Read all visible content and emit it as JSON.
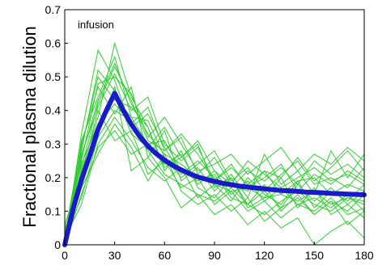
{
  "chart_data": {
    "type": "line",
    "title": "",
    "xlabel": "",
    "ylabel": "Fractional plasma dilution",
    "annotation": "infusion",
    "xlim": [
      0,
      180
    ],
    "ylim": [
      0,
      0.7
    ],
    "xticks": [
      "0",
      "30",
      "60",
      "90",
      "120",
      "150",
      "180"
    ],
    "yticks": [
      "0",
      "0.1",
      "0.2",
      "0.3",
      "0.4",
      "0.5",
      "0.6",
      "0.7"
    ],
    "grid": false,
    "colors": {
      "individual": "#33cc33",
      "model": "#1a1acc"
    },
    "series": [
      {
        "x": [
          0,
          5,
          10,
          15,
          20,
          25,
          30,
          35,
          40,
          45,
          50,
          55,
          60,
          65,
          70,
          75,
          80,
          85,
          90,
          95,
          100,
          105,
          110,
          115,
          120,
          125,
          130,
          135,
          140,
          145,
          150,
          155,
          160,
          165,
          170,
          175,
          180
        ],
        "y": [
          0,
          0.107,
          0.193,
          0.265,
          0.344,
          0.4,
          0.451,
          0.402,
          0.359,
          0.323,
          0.294,
          0.271,
          0.252,
          0.236,
          0.223,
          0.212,
          0.202,
          0.195,
          0.189,
          0.183,
          0.179,
          0.175,
          0.172,
          0.169,
          0.167,
          0.164,
          0.162,
          0.161,
          0.159,
          0.157,
          0.156,
          0.155,
          0.153,
          0.152,
          0.151,
          0.15,
          0.149
        ]
      }
    ],
    "individual_series": [
      {
        "x": [
          0,
          10,
          20,
          30,
          40,
          50,
          60,
          70,
          80,
          90,
          100,
          110,
          120,
          130,
          140,
          150,
          160,
          170,
          180
        ],
        "y": [
          0.02,
          0.26,
          0.43,
          0.54,
          0.42,
          0.33,
          0.27,
          0.24,
          0.2,
          0.18,
          0.16,
          0.17,
          0.14,
          0.15,
          0.13,
          0.16,
          0.12,
          0.14,
          0.13
        ]
      },
      {
        "x": [
          0,
          10,
          20,
          30,
          40,
          50,
          60,
          70,
          80,
          90,
          100,
          110,
          120,
          130,
          140,
          150,
          160,
          170,
          180
        ],
        "y": [
          0.0,
          0.33,
          0.58,
          0.49,
          0.35,
          0.39,
          0.29,
          0.21,
          0.25,
          0.2,
          0.17,
          0.22,
          0.19,
          0.23,
          0.18,
          0.25,
          0.21,
          0.24,
          0.2
        ]
      },
      {
        "x": [
          0,
          10,
          20,
          30,
          40,
          50,
          60,
          70,
          80,
          90,
          100,
          110,
          120,
          130,
          140,
          150,
          160,
          170,
          180
        ],
        "y": [
          0.05,
          0.18,
          0.35,
          0.44,
          0.38,
          0.3,
          0.31,
          0.22,
          0.19,
          0.21,
          0.14,
          0.12,
          0.18,
          0.1,
          0.15,
          0.09,
          0.13,
          0.1,
          0.15
        ]
      },
      {
        "x": [
          0,
          10,
          20,
          30,
          40,
          50,
          60,
          70,
          80,
          90,
          100,
          110,
          120,
          130,
          140,
          150,
          160,
          170,
          180
        ],
        "y": [
          0.0,
          0.22,
          0.38,
          0.6,
          0.44,
          0.35,
          0.22,
          0.28,
          0.17,
          0.14,
          0.2,
          0.12,
          0.16,
          0.11,
          0.18,
          0.13,
          0.17,
          0.12,
          0.16
        ]
      },
      {
        "x": [
          0,
          10,
          20,
          30,
          40,
          50,
          60,
          70,
          80,
          90,
          100,
          110,
          120,
          130,
          140,
          150,
          160,
          170,
          180
        ],
        "y": [
          0.03,
          0.3,
          0.47,
          0.39,
          0.47,
          0.26,
          0.34,
          0.19,
          0.23,
          0.16,
          0.21,
          0.14,
          0.27,
          0.18,
          0.22,
          0.15,
          0.28,
          0.2,
          0.27
        ]
      },
      {
        "x": [
          0,
          10,
          20,
          30,
          40,
          50,
          60,
          70,
          80,
          90,
          100,
          110,
          120,
          130,
          140,
          150,
          160,
          170,
          180
        ],
        "y": [
          0.0,
          0.15,
          0.29,
          0.34,
          0.27,
          0.3,
          0.24,
          0.27,
          0.18,
          0.22,
          0.15,
          0.19,
          0.13,
          0.17,
          0.12,
          0.14,
          0.11,
          0.15,
          0.1
        ]
      },
      {
        "x": [
          0,
          10,
          20,
          30,
          40,
          50,
          60,
          70,
          80,
          90,
          100,
          110,
          120,
          130,
          140,
          150,
          160,
          170,
          180
        ],
        "y": [
          0.01,
          0.27,
          0.41,
          0.51,
          0.4,
          0.44,
          0.3,
          0.25,
          0.29,
          0.19,
          0.24,
          0.17,
          0.2,
          0.24,
          0.16,
          0.21,
          0.18,
          0.22,
          0.19
        ]
      },
      {
        "x": [
          0,
          10,
          20,
          30,
          40,
          50,
          60,
          70,
          80,
          90,
          100,
          110,
          120,
          130,
          140,
          150,
          160,
          170,
          180
        ],
        "y": [
          0.0,
          0.2,
          0.33,
          0.47,
          0.22,
          0.26,
          0.2,
          0.11,
          0.15,
          0.09,
          0.12,
          0.06,
          0.1,
          0.05,
          0.08,
          0.0,
          0.04,
          0.07,
          0.02
        ]
      },
      {
        "x": [
          0,
          10,
          20,
          30,
          40,
          50,
          60,
          70,
          80,
          90,
          100,
          110,
          120,
          130,
          140,
          150,
          160,
          170,
          180
        ],
        "y": [
          0.04,
          0.24,
          0.36,
          0.42,
          0.36,
          0.41,
          0.28,
          0.32,
          0.21,
          0.26,
          0.18,
          0.16,
          0.22,
          0.2,
          0.26,
          0.19,
          0.23,
          0.28,
          0.22
        ]
      },
      {
        "x": [
          0,
          10,
          20,
          30,
          40,
          50,
          60,
          70,
          80,
          90,
          100,
          110,
          120,
          130,
          140,
          150,
          160,
          170,
          180
        ],
        "y": [
          0.0,
          0.28,
          0.52,
          0.46,
          0.33,
          0.29,
          0.35,
          0.26,
          0.3,
          0.17,
          0.2,
          0.11,
          0.14,
          0.2,
          0.11,
          0.17,
          0.09,
          0.12,
          0.08
        ]
      },
      {
        "x": [
          0,
          10,
          20,
          30,
          40,
          50,
          60,
          70,
          80,
          90,
          100,
          110,
          120,
          130,
          140,
          150,
          160,
          170,
          180
        ],
        "y": [
          0.02,
          0.12,
          0.3,
          0.38,
          0.31,
          0.23,
          0.19,
          0.23,
          0.14,
          0.18,
          0.13,
          0.2,
          0.15,
          0.12,
          0.19,
          0.11,
          0.16,
          0.13,
          0.18
        ]
      },
      {
        "x": [
          0,
          10,
          20,
          30,
          40,
          50,
          60,
          70,
          80,
          90,
          100,
          110,
          120,
          130,
          140,
          150,
          160,
          170,
          180
        ],
        "y": [
          0.0,
          0.31,
          0.44,
          0.56,
          0.38,
          0.37,
          0.26,
          0.2,
          0.24,
          0.28,
          0.19,
          0.23,
          0.16,
          0.21,
          0.25,
          0.18,
          0.2,
          0.17,
          0.23
        ]
      },
      {
        "x": [
          0,
          10,
          20,
          30,
          40,
          50,
          60,
          70,
          80,
          90,
          100,
          110,
          120,
          130,
          140,
          150,
          160,
          170,
          180
        ],
        "y": [
          0.06,
          0.21,
          0.4,
          0.31,
          0.34,
          0.21,
          0.25,
          0.17,
          0.2,
          0.12,
          0.16,
          0.1,
          0.13,
          0.08,
          0.12,
          0.1,
          0.14,
          0.09,
          0.11
        ]
      },
      {
        "x": [
          0,
          10,
          20,
          30,
          40,
          50,
          60,
          70,
          80,
          90,
          100,
          110,
          120,
          130,
          140,
          150,
          160,
          170,
          180
        ],
        "y": [
          0.0,
          0.25,
          0.48,
          0.5,
          0.45,
          0.32,
          0.38,
          0.3,
          0.22,
          0.24,
          0.27,
          0.21,
          0.25,
          0.29,
          0.22,
          0.27,
          0.24,
          0.29,
          0.25
        ]
      },
      {
        "x": [
          0,
          10,
          20,
          30,
          40,
          50,
          60,
          70,
          80,
          90,
          100,
          110,
          120,
          130,
          140,
          150,
          160,
          170,
          180
        ],
        "y": [
          0.01,
          0.17,
          0.27,
          0.36,
          0.29,
          0.19,
          0.27,
          0.16,
          0.12,
          0.15,
          0.1,
          0.14,
          0.07,
          0.11,
          0.14,
          0.09,
          0.13,
          0.06,
          0.1
        ]
      },
      {
        "x": [
          0,
          10,
          20,
          30,
          40,
          50,
          60,
          70,
          80,
          90,
          100,
          110,
          120,
          130,
          140,
          150,
          160,
          170,
          180
        ],
        "y": [
          0.0,
          0.29,
          0.5,
          0.43,
          0.41,
          0.35,
          0.23,
          0.26,
          0.31,
          0.22,
          0.18,
          0.25,
          0.21,
          0.17,
          0.2,
          0.23,
          0.19,
          0.21,
          0.18
        ]
      },
      {
        "x": [
          0,
          10,
          20,
          30,
          40,
          50,
          60,
          70,
          80,
          90,
          100,
          110,
          120,
          130,
          140,
          150,
          160,
          170,
          180
        ],
        "y": [
          0.03,
          0.14,
          0.32,
          0.4,
          0.37,
          0.28,
          0.21,
          0.18,
          0.15,
          0.13,
          0.17,
          0.12,
          0.09,
          0.13,
          0.16,
          0.12,
          0.1,
          0.14,
          0.12
        ]
      },
      {
        "x": [
          0,
          10,
          20,
          30,
          40,
          50,
          60,
          70,
          80,
          90,
          100,
          110,
          120,
          130,
          140,
          150,
          160,
          170,
          180
        ],
        "y": [
          0.0,
          0.23,
          0.42,
          0.53,
          0.43,
          0.31,
          0.28,
          0.33,
          0.27,
          0.19,
          0.23,
          0.18,
          0.22,
          0.15,
          0.19,
          0.2,
          0.15,
          0.18,
          0.16
        ]
      }
    ]
  }
}
